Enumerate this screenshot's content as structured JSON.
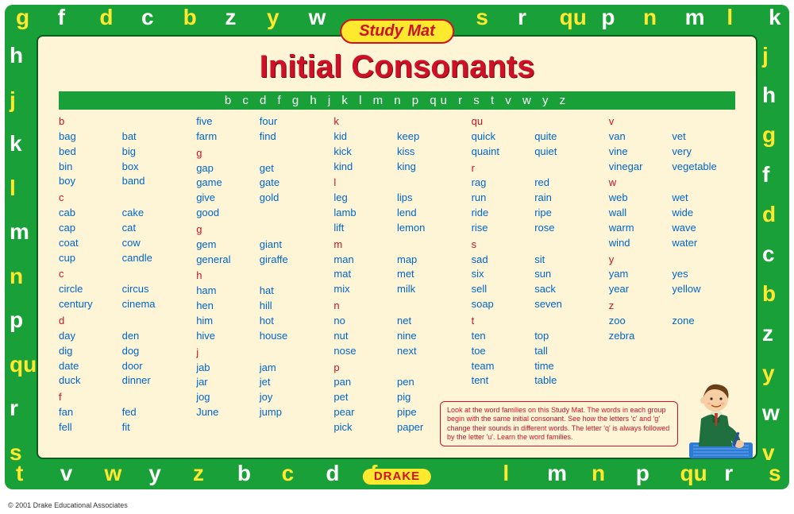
{
  "badge": "Study Mat",
  "title": "Initial Consonants",
  "alphabet": "b c d f g h j k l m n p qu r s t v w y z",
  "drake": "DRAKE",
  "copyright": "© 2001 Drake Educational Associates",
  "note": "Look at the word families on this Study Mat. The words in each group begin with the same initial consonant. See how the letters 'c' and 'g' change their sounds in different words. The letter 'q' is always followed by the letter 'u'. Learn the word families.",
  "border_top": [
    [
      "g",
      "#ffe92e"
    ],
    [
      "f",
      "#ffffff"
    ],
    [
      "d",
      "#ffe92e"
    ],
    [
      "c",
      "#ffffff"
    ],
    [
      "b",
      "#ffe92e"
    ],
    [
      "z",
      "#ffffff"
    ],
    [
      "y",
      "#ffe92e"
    ],
    [
      "w",
      "#ffffff"
    ],
    [
      "",
      "#0"
    ],
    [
      "",
      "#0"
    ],
    [
      "",
      "#0"
    ],
    [
      "s",
      "#ffe92e"
    ],
    [
      "r",
      "#ffffff"
    ],
    [
      "qu",
      "#ffe92e"
    ],
    [
      "p",
      "#ffffff"
    ],
    [
      "n",
      "#ffe92e"
    ],
    [
      "m",
      "#ffffff"
    ],
    [
      "l",
      "#ffe92e"
    ],
    [
      "k",
      "#ffffff"
    ]
  ],
  "border_bottom": [
    [
      "t",
      "#ffe92e"
    ],
    [
      "v",
      "#ffffff"
    ],
    [
      "w",
      "#ffe92e"
    ],
    [
      "y",
      "#ffffff"
    ],
    [
      "z",
      "#ffe92e"
    ],
    [
      "b",
      "#ffffff"
    ],
    [
      "c",
      "#ffe92e"
    ],
    [
      "d",
      "#ffffff"
    ],
    [
      "f",
      "#ffe92e"
    ],
    [
      "",
      "#0"
    ],
    [
      "",
      "#0"
    ],
    [
      "l",
      "#ffe92e"
    ],
    [
      "m",
      "#ffffff"
    ],
    [
      "n",
      "#ffe92e"
    ],
    [
      "p",
      "#ffffff"
    ],
    [
      "qu",
      "#ffe92e"
    ],
    [
      "r",
      "#ffffff"
    ],
    [
      "s",
      "#ffe92e"
    ]
  ],
  "border_left": [
    [
      "h",
      "#ffffff"
    ],
    [
      "j",
      "#ffe92e"
    ],
    [
      "k",
      "#ffffff"
    ],
    [
      "l",
      "#ffe92e"
    ],
    [
      "m",
      "#ffffff"
    ],
    [
      "n",
      "#ffe92e"
    ],
    [
      "p",
      "#ffffff"
    ],
    [
      "qu",
      "#ffe92e"
    ],
    [
      "r",
      "#ffffff"
    ],
    [
      "s",
      "#ffe92e"
    ]
  ],
  "border_right": [
    [
      "j",
      "#ffe92e"
    ],
    [
      "h",
      "#ffffff"
    ],
    [
      "g",
      "#ffe92e"
    ],
    [
      "f",
      "#ffffff"
    ],
    [
      "d",
      "#ffe92e"
    ],
    [
      "c",
      "#ffffff"
    ],
    [
      "b",
      "#ffe92e"
    ],
    [
      "z",
      "#ffffff"
    ],
    [
      "y",
      "#ffe92e"
    ],
    [
      "w",
      "#ffffff"
    ],
    [
      "v",
      "#ffe92e"
    ]
  ],
  "columns": [
    [
      {
        "letter": "b",
        "rows": [
          [
            "bag",
            "bat"
          ],
          [
            "bed",
            "big"
          ],
          [
            "bin",
            "box"
          ],
          [
            "boy",
            "band"
          ]
        ]
      },
      {
        "letter": "c",
        "rows": [
          [
            "cab",
            "cake"
          ],
          [
            "cap",
            "cat"
          ],
          [
            "coat",
            "cow"
          ],
          [
            "cup",
            "candle"
          ]
        ]
      },
      {
        "letter": "c",
        "rows": [
          [
            "circle",
            "circus"
          ],
          [
            "century",
            "cinema"
          ]
        ]
      },
      {
        "letter": "d",
        "rows": [
          [
            "day",
            "den"
          ],
          [
            "dig",
            "dog"
          ],
          [
            "date",
            "door"
          ],
          [
            "duck",
            "dinner"
          ]
        ]
      },
      {
        "letter": "f",
        "rows": [
          [
            "fan",
            "fed"
          ],
          [
            "fell",
            "fit"
          ]
        ]
      }
    ],
    [
      {
        "letter": "",
        "rows": [
          [
            "five",
            "four"
          ],
          [
            "farm",
            "find"
          ]
        ]
      },
      {
        "letter": "g",
        "rows": [
          [
            "gap",
            "get"
          ],
          [
            "game",
            "gate"
          ],
          [
            "give",
            "gold"
          ],
          [
            "good",
            ""
          ]
        ]
      },
      {
        "letter": "g",
        "rows": [
          [
            "gem",
            "giant"
          ],
          [
            "general",
            "giraffe"
          ]
        ]
      },
      {
        "letter": "h",
        "rows": [
          [
            "ham",
            "hat"
          ],
          [
            "hen",
            "hill"
          ],
          [
            "him",
            "hot"
          ],
          [
            "hive",
            "house"
          ]
        ]
      },
      {
        "letter": "j",
        "rows": [
          [
            "jab",
            "jam"
          ],
          [
            "jar",
            "jet"
          ],
          [
            "jog",
            "joy"
          ],
          [
            "June",
            "jump"
          ]
        ]
      }
    ],
    [
      {
        "letter": "k",
        "rows": [
          [
            "kid",
            "keep"
          ],
          [
            "kick",
            "kiss"
          ],
          [
            "kind",
            "king"
          ]
        ]
      },
      {
        "letter": "l",
        "rows": [
          [
            "leg",
            "lips"
          ],
          [
            "lamb",
            "lend"
          ],
          [
            "lift",
            "lemon"
          ]
        ]
      },
      {
        "letter": "m",
        "rows": [
          [
            "man",
            "map"
          ],
          [
            "mat",
            "met"
          ],
          [
            "mix",
            "milk"
          ]
        ]
      },
      {
        "letter": "n",
        "rows": [
          [
            "no",
            "net"
          ],
          [
            "nut",
            "nine"
          ],
          [
            "nose",
            "next"
          ]
        ]
      },
      {
        "letter": "p",
        "rows": [
          [
            "pan",
            "pen"
          ],
          [
            "pet",
            "pig"
          ],
          [
            "pear",
            "pipe"
          ],
          [
            "pick",
            "paper"
          ]
        ]
      }
    ],
    [
      {
        "letter": "qu",
        "rows": [
          [
            "quick",
            "quite"
          ],
          [
            "quaint",
            "quiet"
          ]
        ]
      },
      {
        "letter": "r",
        "rows": [
          [
            "rag",
            "red"
          ],
          [
            "run",
            "rain"
          ],
          [
            "ride",
            "ripe"
          ],
          [
            "rise",
            "rose"
          ]
        ]
      },
      {
        "letter": "s",
        "rows": [
          [
            "sad",
            "sit"
          ],
          [
            "six",
            "sun"
          ],
          [
            "sell",
            "sack"
          ],
          [
            "soap",
            "seven"
          ]
        ]
      },
      {
        "letter": "t",
        "rows": [
          [
            "ten",
            "top"
          ],
          [
            "toe",
            "tall"
          ],
          [
            "team",
            "time"
          ],
          [
            "tent",
            "table"
          ]
        ]
      }
    ],
    [
      {
        "letter": "v",
        "rows": [
          [
            "van",
            "vet"
          ],
          [
            "vine",
            "very"
          ],
          [
            "vinegar",
            "vegetable"
          ]
        ]
      },
      {
        "letter": "w",
        "rows": [
          [
            "web",
            "wet"
          ],
          [
            "wall",
            "wide"
          ],
          [
            "warm",
            "wave"
          ],
          [
            "wind",
            "water"
          ]
        ]
      },
      {
        "letter": "y",
        "rows": [
          [
            "yam",
            "yes"
          ],
          [
            "year",
            "yellow"
          ]
        ]
      },
      {
        "letter": "z",
        "rows": [
          [
            "zoo",
            "zone"
          ],
          [
            "zebra",
            ""
          ]
        ]
      }
    ]
  ],
  "colors": {
    "green": "#19a038",
    "cream": "#fdf5d5",
    "red": "#ce1126",
    "blue": "#0066cc",
    "yellow": "#ffe92e",
    "white": "#ffffff"
  }
}
